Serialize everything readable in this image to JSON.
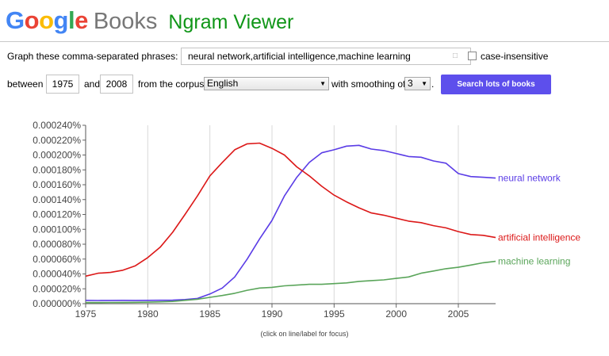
{
  "header": {
    "logo_letters": [
      {
        "char": "G",
        "color": "#4285f4"
      },
      {
        "char": "o",
        "color": "#ea4335"
      },
      {
        "char": "o",
        "color": "#fbbc05"
      },
      {
        "char": "g",
        "color": "#4285f4"
      },
      {
        "char": "l",
        "color": "#34a853"
      },
      {
        "char": "e",
        "color": "#ea4335"
      }
    ],
    "logo_books": "Books",
    "title": "Ngram Viewer"
  },
  "form": {
    "phrases_label": "Graph these comma-separated phrases:",
    "phrases_value": "neural network,artificial intelligence,machine learning",
    "case_label": "case-insensitive",
    "between_label": "between",
    "start_year": "1975",
    "and_label": "and",
    "end_year": "2008",
    "corpus_label": "from the corpus",
    "corpus_value": "English",
    "smoothing_label": "with smoothing of",
    "smoothing_value": "3",
    "search_button": "Search lots of books"
  },
  "chart_data": {
    "type": "line",
    "xlim": [
      1975,
      2008
    ],
    "ylim": [
      0,
      0.00024
    ],
    "x_ticks": [
      1975,
      1980,
      1985,
      1990,
      1995,
      2000,
      2005
    ],
    "y_ticks": [
      {
        "v": 0.0,
        "label": "0.000000%"
      },
      {
        "v": 2e-05,
        "label": "0.000020%"
      },
      {
        "v": 4e-05,
        "label": "0.000040%"
      },
      {
        "v": 6e-05,
        "label": "0.000060%"
      },
      {
        "v": 8e-05,
        "label": "0.000080%"
      },
      {
        "v": 0.0001,
        "label": "0.000100%"
      },
      {
        "v": 0.00012,
        "label": "0.000120%"
      },
      {
        "v": 0.00014,
        "label": "0.000140%"
      },
      {
        "v": 0.00016,
        "label": "0.000160%"
      },
      {
        "v": 0.00018,
        "label": "0.000180%"
      },
      {
        "v": 0.0002,
        "label": "0.000200%"
      },
      {
        "v": 0.00022,
        "label": "0.000220%"
      },
      {
        "v": 0.00024,
        "label": "0.000240%"
      }
    ],
    "grid": "vertical",
    "x": [
      1975,
      1976,
      1977,
      1978,
      1979,
      1980,
      1981,
      1982,
      1983,
      1984,
      1985,
      1986,
      1987,
      1988,
      1989,
      1990,
      1991,
      1992,
      1993,
      1994,
      1995,
      1996,
      1997,
      1998,
      1999,
      2000,
      2001,
      2002,
      2003,
      2004,
      2005,
      2006,
      2007,
      2008
    ],
    "series": [
      {
        "name": "neural network",
        "color": "#5a3ce6",
        "values": [
          4.5e-06,
          4.3e-06,
          4.4e-06,
          4.5e-06,
          4.4e-06,
          4.5e-06,
          4.6e-06,
          4.7e-06,
          5.5e-06,
          7e-06,
          1.3e-05,
          2.1e-05,
          3.6e-05,
          6e-05,
          8.7e-05,
          0.000112,
          0.000145,
          0.00017,
          0.00019,
          0.000203,
          0.000207,
          0.000212,
          0.000213,
          0.000208,
          0.000206,
          0.000202,
          0.000198,
          0.000197,
          0.000192,
          0.000189,
          0.000175,
          0.000171,
          0.00017,
          0.000169
        ]
      },
      {
        "name": "artificial intelligence",
        "color": "#dc1818",
        "values": [
          3.7e-05,
          4.1e-05,
          4.2e-05,
          4.5e-05,
          5.1e-05,
          6.2e-05,
          7.6e-05,
          9.6e-05,
          0.00012,
          0.000145,
          0.000172,
          0.00019,
          0.000207,
          0.000215,
          0.000216,
          0.000209,
          0.0002,
          0.000184,
          0.000172,
          0.000158,
          0.000146,
          0.000137,
          0.000129,
          0.000122,
          0.000119,
          0.000115,
          0.000111,
          0.000109,
          0.000105,
          0.000102,
          9.7e-05,
          9.3e-05,
          9.2e-05,
          8.9e-05
        ]
      },
      {
        "name": "machine learning",
        "color": "#5aa55a",
        "values": [
          1.5e-06,
          1.5e-06,
          1.6e-06,
          1.7e-06,
          1.8e-06,
          2e-06,
          2.5e-06,
          3e-06,
          4.5e-06,
          6e-06,
          8.5e-06,
          1.1e-05,
          1.4e-05,
          1.8e-05,
          2.1e-05,
          2.2e-05,
          2.4e-05,
          2.5e-05,
          2.6e-05,
          2.6e-05,
          2.7e-05,
          2.8e-05,
          3e-05,
          3.1e-05,
          3.2e-05,
          3.4e-05,
          3.6e-05,
          4.1e-05,
          4.4e-05,
          4.7e-05,
          4.9e-05,
          5.2e-05,
          5.5e-05,
          5.7e-05
        ]
      }
    ],
    "legend": "right-of-lines"
  },
  "footer": {
    "note": "(click on line/label for focus)"
  }
}
